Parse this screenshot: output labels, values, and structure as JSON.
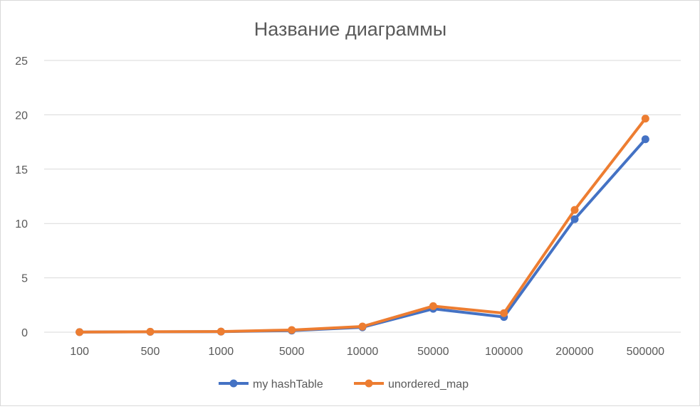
{
  "chart_data": {
    "type": "line",
    "title": "Название диаграммы",
    "xlabel": "",
    "ylabel": "",
    "categories": [
      "100",
      "500",
      "1000",
      "5000",
      "10000",
      "50000",
      "100000",
      "200000",
      "500000"
    ],
    "ylim": [
      0,
      25
    ],
    "yticks": [
      0,
      5,
      10,
      15,
      20,
      25
    ],
    "grid": true,
    "legend_position": "bottom",
    "series": [
      {
        "name": "my hashTable",
        "color": "#4472c4",
        "values": [
          0.01,
          0.03,
          0.05,
          0.15,
          0.45,
          2.15,
          1.4,
          10.4,
          17.75
        ]
      },
      {
        "name": "unordered_map",
        "color": "#ed7d31",
        "values": [
          0.01,
          0.04,
          0.06,
          0.2,
          0.52,
          2.4,
          1.75,
          11.25,
          19.65
        ]
      }
    ]
  }
}
